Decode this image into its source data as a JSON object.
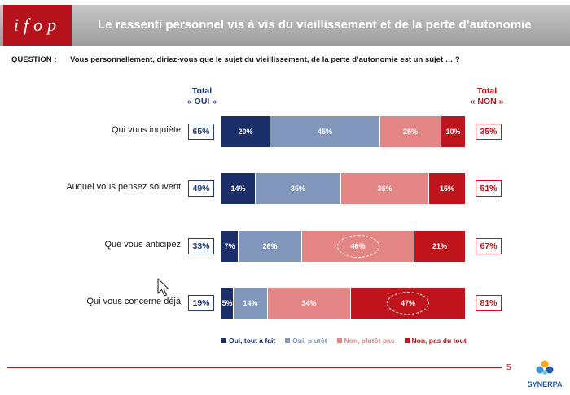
{
  "header": {
    "logo_text": "ifop",
    "title": "Le ressenti personnel vis à vis du vieillissement et de la perte d’autonomie"
  },
  "question": {
    "label": "QUESTION :",
    "text": "Vous personnellement, diriez-vous que le sujet du vieillissement, de la perte d’autonomie est un sujet … ?"
  },
  "totals_header": {
    "oui_line1": "Total",
    "oui_line2": "« OUI »",
    "non_line1": "Total",
    "non_line2": "« NON »"
  },
  "colors": {
    "oui_tout_a_fait": "#1b2f6b",
    "oui_plutot": "#8196bb",
    "non_plutot_pas": "#e38585",
    "non_pas_du_tout": "#c0141c"
  },
  "chart_data": {
    "type": "bar",
    "orientation": "horizontal-stacked-100",
    "categories": [
      "Qui vous inquiète",
      "Auquel vous pensez souvent",
      "Que vous anticipez",
      "Qui vous concerne déjà"
    ],
    "series": [
      {
        "name": "Oui, tout à fait",
        "values": [
          20,
          14,
          7,
          5
        ],
        "labels": [
          "20%",
          "14%",
          "7%",
          "5%"
        ]
      },
      {
        "name": "Oui, plutôt",
        "values": [
          45,
          35,
          26,
          14
        ],
        "labels": [
          "45%",
          "35%",
          "26%",
          "14%"
        ]
      },
      {
        "name": "Non, plutôt pas",
        "values": [
          25,
          36,
          46,
          34
        ],
        "labels": [
          "25%",
          "36%",
          "46%",
          "34%"
        ]
      },
      {
        "name": "Non, pas du tout",
        "values": [
          10,
          15,
          21,
          47
        ],
        "labels": [
          "10%",
          "15%",
          "21%",
          "47%"
        ]
      }
    ],
    "total_oui": [
      "65%",
      "49%",
      "33%",
      "19%"
    ],
    "total_non": [
      "35%",
      "51%",
      "67%",
      "81%"
    ],
    "highlighted": [
      [],
      [],
      [
        2
      ],
      [
        3
      ]
    ],
    "legend_position": "bottom"
  },
  "footer": {
    "page_number": "5",
    "brand": "SYNERPA"
  }
}
